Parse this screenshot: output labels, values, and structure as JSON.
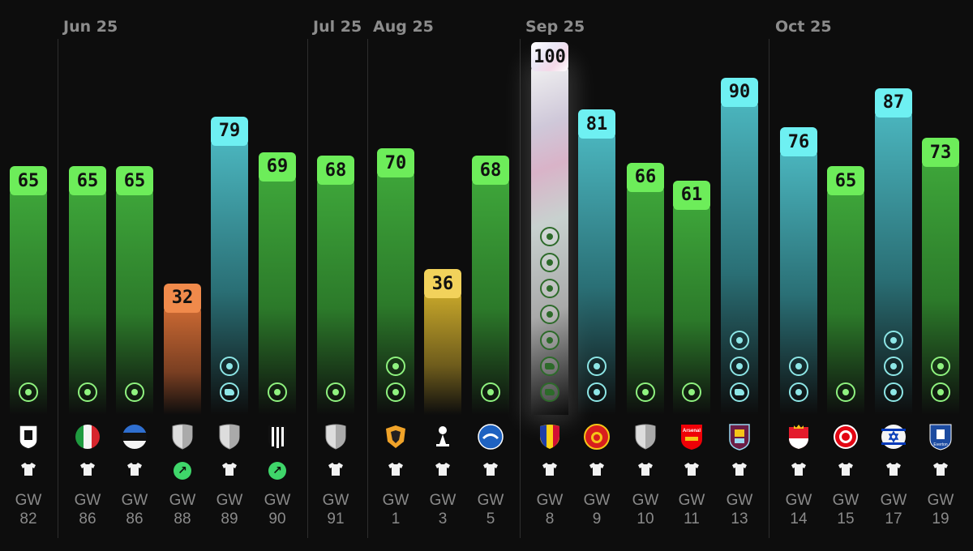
{
  "chart_data": {
    "type": "bar",
    "months": [
      {
        "label": "Jun 25",
        "start_index": 1
      },
      {
        "label": "Jul 25",
        "start_index": 6
      },
      {
        "label": "Aug 25",
        "start_index": 7
      },
      {
        "label": "Sep 25",
        "start_index": 10
      },
      {
        "label": "Oct 25",
        "start_index": 16
      }
    ],
    "ylim": [
      0,
      100
    ],
    "bars": [
      {
        "gw": "82",
        "value": 65,
        "color": "green",
        "events": [
          "goal"
        ],
        "crest": "fulham-crest",
        "kit": "shirt"
      },
      {
        "gw": "86",
        "value": 65,
        "color": "green",
        "events": [
          "goal"
        ],
        "crest": "italy-flag",
        "kit": "shirt"
      },
      {
        "gw": "86",
        "value": 65,
        "color": "green",
        "events": [
          "goal"
        ],
        "crest": "estonia-flag",
        "kit": "shirt"
      },
      {
        "gw": "88",
        "value": 32,
        "color": "orange",
        "events": [],
        "crest": "generic-shield",
        "kit": "sub-icon"
      },
      {
        "gw": "89",
        "value": 79,
        "color": "teal",
        "events": [
          "goal",
          "assist"
        ],
        "crest": "generic-shield",
        "kit": "shirt"
      },
      {
        "gw": "90",
        "value": 69,
        "color": "green",
        "events": [
          "goal"
        ],
        "crest": "newcastle-crest",
        "kit": "sub-icon"
      },
      {
        "gw": "91",
        "value": 68,
        "color": "green",
        "events": [
          "goal"
        ],
        "crest": "generic-shield",
        "kit": "shirt"
      },
      {
        "gw": "1",
        "value": 70,
        "color": "green",
        "events": [
          "goal",
          "goal"
        ],
        "crest": "wolves-crest",
        "kit": "shirt"
      },
      {
        "gw": "3",
        "value": 36,
        "color": "yellow",
        "events": [],
        "crest": "tottenham-crest",
        "kit": "shirt"
      },
      {
        "gw": "5",
        "value": 68,
        "color": "green",
        "events": [
          "goal"
        ],
        "crest": "brighton-crest",
        "kit": "shirt"
      },
      {
        "gw": "8",
        "value": 100,
        "color": "special",
        "events": [
          "goal",
          "goal",
          "goal",
          "goal",
          "goal",
          "assist",
          "assist"
        ],
        "crest": "andorra-flag",
        "kit": "shirt"
      },
      {
        "gw": "9",
        "value": 81,
        "color": "teal",
        "events": [
          "goal",
          "goal"
        ],
        "crest": "man-utd-crest",
        "kit": "shirt"
      },
      {
        "gw": "10",
        "value": 66,
        "color": "green",
        "events": [
          "goal"
        ],
        "crest": "generic-shield",
        "kit": "shirt"
      },
      {
        "gw": "11",
        "value": 61,
        "color": "green",
        "events": [
          "goal"
        ],
        "crest": "arsenal-crest",
        "kit": "shirt"
      },
      {
        "gw": "13",
        "value": 90,
        "color": "teal",
        "events": [
          "goal",
          "goal",
          "assist"
        ],
        "crest": "burnley-crest",
        "kit": "shirt"
      },
      {
        "gw": "14",
        "value": 76,
        "color": "teal",
        "events": [
          "goal",
          "goal"
        ],
        "crest": "monaco-crest",
        "kit": "shirt"
      },
      {
        "gw": "15",
        "value": 65,
        "color": "green",
        "events": [
          "goal"
        ],
        "crest": "brentford-crest",
        "kit": "shirt"
      },
      {
        "gw": "17",
        "value": 87,
        "color": "teal",
        "events": [
          "goal",
          "goal",
          "goal"
        ],
        "crest": "israel-flag",
        "kit": "shirt"
      },
      {
        "gw": "19",
        "value": 73,
        "color": "green",
        "events": [
          "goal",
          "goal"
        ],
        "crest": "everton-crest",
        "kit": "shirt"
      }
    ],
    "gw_prefix": "GW"
  },
  "crest_texts": {
    "arsenal": "Arsenal",
    "everton": "Everton"
  }
}
